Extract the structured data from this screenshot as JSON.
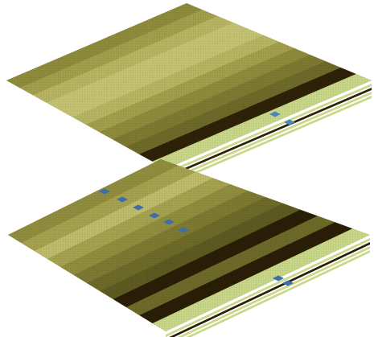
{
  "scene": {
    "description_free": true,
    "background": "#ffffff",
    "grid_line_color": "#5a5622",
    "layers": [
      {
        "name": "upper-terrain-slab",
        "palette": [
          "#6e6a2a",
          "#7e7a32",
          "#8f8b3c",
          "#a39f4c",
          "#b8b562",
          "#c5c373"
        ],
        "dark_band": "#2e2208",
        "light_band": "#c9d888",
        "water": "#4f86b8"
      },
      {
        "name": "lower-terrain-slab",
        "palette": [
          "#5e5a22",
          "#6e6a2a",
          "#7e7a32",
          "#918d3e",
          "#a6a24f",
          "#bfbc6c"
        ],
        "dark_band": "#2a1e06",
        "light_band": "#c9d888",
        "water": "#3d6ea8"
      }
    ]
  }
}
